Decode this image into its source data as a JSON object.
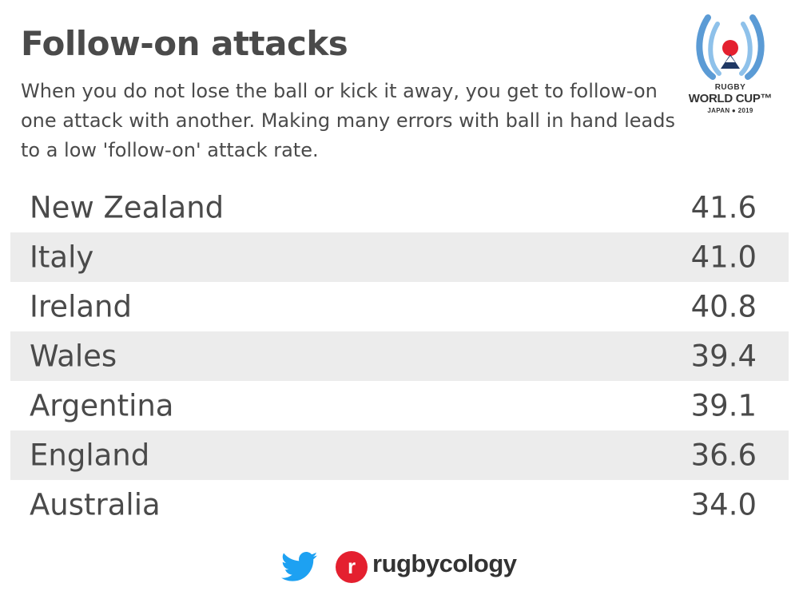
{
  "header": {
    "title": "Follow-on attacks",
    "subtitle": "When you do not lose the ball or kick it away, you get to follow-on one attack with another. Making many errors with ball in hand leads to a low 'follow-on' attack rate."
  },
  "logo": {
    "line1": "RUGBY",
    "line2": "WORLD CUP™",
    "line3": "JAPAN ● 2019",
    "colors": {
      "blue": "#5b9bd5",
      "red": "#e4202f"
    }
  },
  "chart_data": {
    "type": "table",
    "columns": [
      "",
      ""
    ],
    "rows": [
      {
        "team": "New Zealand",
        "value": "41.6"
      },
      {
        "team": "Italy",
        "value": "41.0"
      },
      {
        "team": "Ireland",
        "value": "40.8"
      },
      {
        "team": "Wales",
        "value": "39.4"
      },
      {
        "team": "Argentina",
        "value": "39.1"
      },
      {
        "team": "England",
        "value": "36.6"
      },
      {
        "team": "Australia",
        "value": "34.0"
      }
    ],
    "row_stripe_color": "#ececec"
  },
  "footer": {
    "twitter_icon": "twitter-bird-icon",
    "brand_letter": "r",
    "brand_name": "rugbycology",
    "colors": {
      "twitter": "#1da1f2",
      "brand": "#e4202f"
    }
  }
}
